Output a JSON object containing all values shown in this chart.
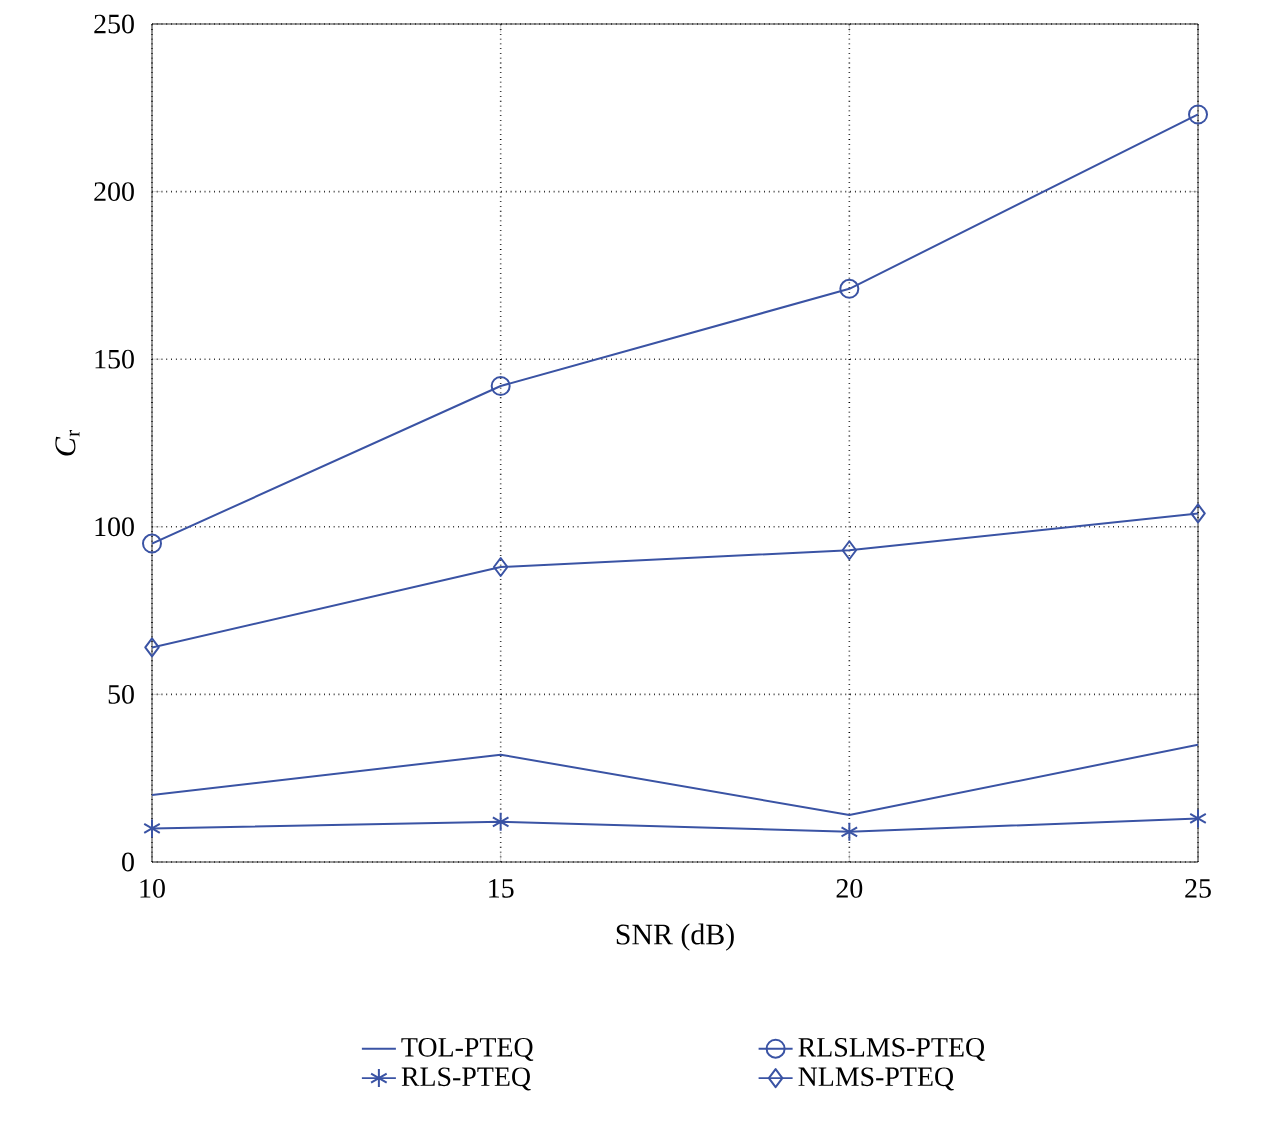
{
  "chart_data": {
    "type": "line",
    "xlabel": "SNR (dB)",
    "ylabel": "*C*$_{r}$",
    "x": [
      10,
      15,
      20,
      25
    ],
    "series": [
      {
        "name": "TOL-PTEQ",
        "color": "#3a53a4",
        "marker": "none",
        "values": [
          20,
          32,
          14,
          35
        ]
      },
      {
        "name": "RLSLMS-PTEQ",
        "color": "#3a53a4",
        "marker": "circle",
        "values": [
          95,
          142,
          171,
          223
        ]
      },
      {
        "name": "RLS-PTEQ",
        "color": "#3a53a4",
        "marker": "cross",
        "values": [
          10,
          12,
          9,
          13
        ]
      },
      {
        "name": "NLMS-PTEQ",
        "color": "#3a53a4",
        "marker": "diamond",
        "values": [
          64,
          88,
          93,
          104
        ]
      }
    ],
    "xlim": [
      10,
      25
    ],
    "ylim": [
      0,
      250
    ],
    "xticks": [
      10,
      15,
      20,
      25
    ],
    "yticks": [
      0,
      50,
      100,
      150,
      200,
      250
    ],
    "grid": true,
    "legend": "bottom",
    "line_style": "solid"
  }
}
